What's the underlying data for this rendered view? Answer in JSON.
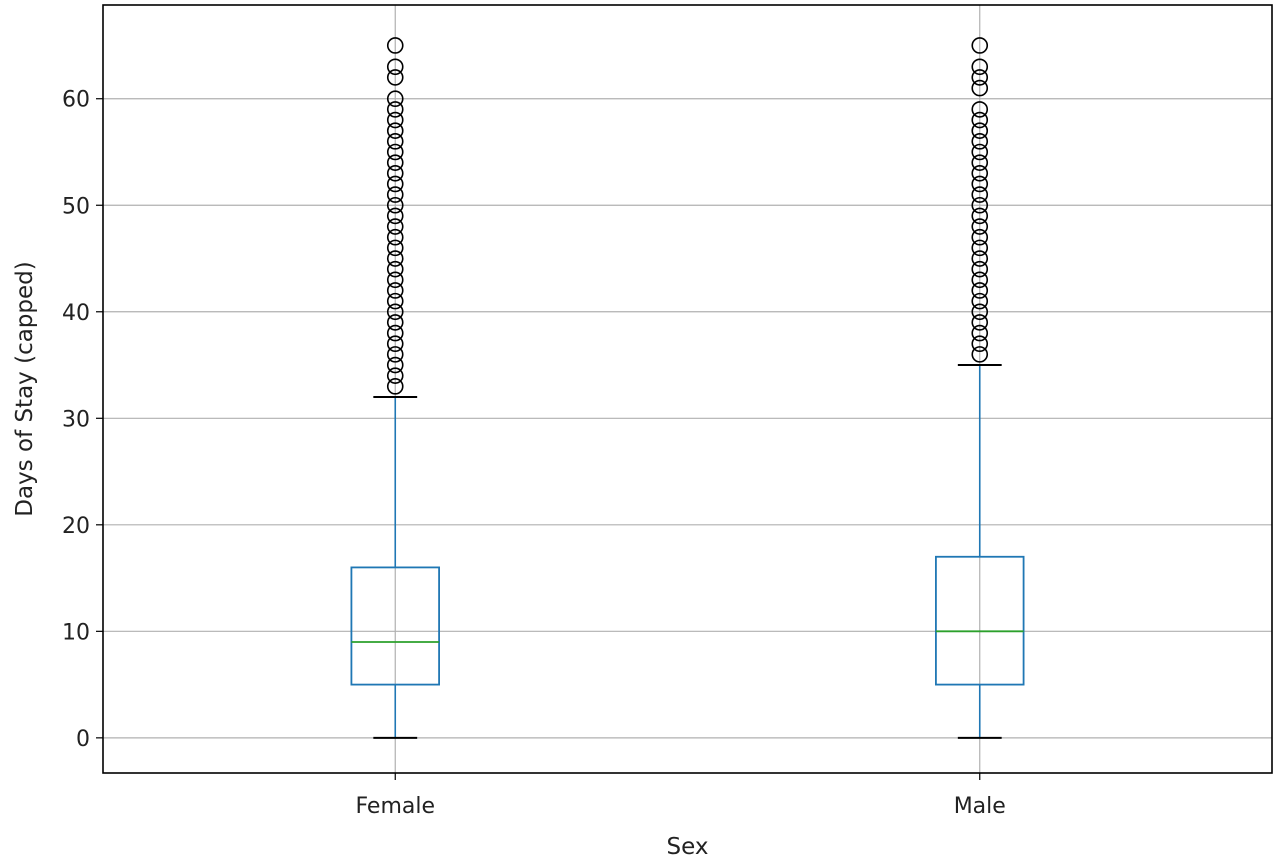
{
  "chart_data": {
    "type": "boxplot",
    "title": "",
    "xlabel": "Sex",
    "ylabel": "Days of Stay (capped)",
    "ylim": [
      -3.3,
      68.8
    ],
    "yticks": [
      0,
      10,
      20,
      30,
      40,
      50,
      60
    ],
    "grid": true,
    "categories": [
      "Female",
      "Male"
    ],
    "boxes": [
      {
        "category": "Female",
        "whisker_low": 0,
        "q1": 5,
        "median": 9,
        "q3": 16,
        "whisker_high": 32,
        "outliers": [
          33,
          34,
          35,
          36,
          37,
          38,
          39,
          40,
          41,
          42,
          43,
          44,
          45,
          46,
          47,
          48,
          49,
          50,
          51,
          52,
          53,
          54,
          55,
          56,
          57,
          58,
          59,
          60,
          62,
          63,
          65
        ]
      },
      {
        "category": "Male",
        "whisker_low": 0,
        "q1": 5,
        "median": 10,
        "q3": 17,
        "whisker_high": 35,
        "outliers": [
          36,
          37,
          38,
          39,
          40,
          41,
          42,
          43,
          44,
          45,
          46,
          47,
          48,
          49,
          50,
          51,
          52,
          53,
          54,
          55,
          56,
          57,
          58,
          59,
          61,
          62,
          63,
          65
        ]
      }
    ],
    "colors": {
      "box": "#1f77b4",
      "median": "#2ca02c",
      "whisker_cap": "#000000",
      "flier": "#000000",
      "grid": "#b0b0b0",
      "frame": "#000000"
    }
  }
}
